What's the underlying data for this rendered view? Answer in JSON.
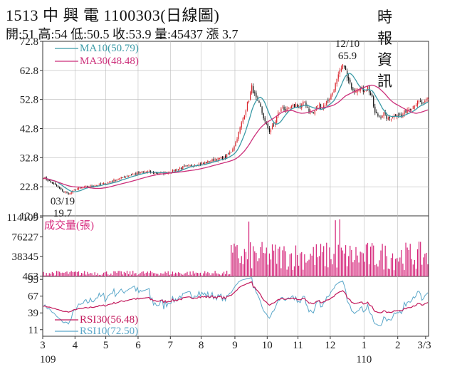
{
  "header": {
    "code": "1513",
    "name": "中 興 電",
    "date": "1100303(日線圖)",
    "source": "時報資訊",
    "stats": "開:51 高:54 低:50.5 收:53.9 量:45437 漲 3.7"
  },
  "colors": {
    "ma10": "#3a9aa6",
    "ma30": "#cc2f7a",
    "up": "#d8232a",
    "down": "#111111",
    "volume": "#d6287c",
    "rsi10": "#5aa7c9",
    "rsi30": "#c2185b"
  },
  "chart_data": [
    {
      "type": "candlestick",
      "panel": "price",
      "y_ticks": [
        "72.8",
        "62.8",
        "52.8",
        "42.8",
        "32.8",
        "22.8",
        "12.8"
      ],
      "ylim": [
        12.8,
        72.8
      ],
      "legend": [
        {
          "key": "ma10",
          "label": "MA10(50.79)"
        },
        {
          "key": "ma30",
          "label": "MA30(48.48)"
        }
      ],
      "annotations": [
        {
          "date": "03/19",
          "value": "19.7"
        },
        {
          "date": "12/10",
          "value": "65.9"
        }
      ],
      "anchors": [
        [
          0,
          26
        ],
        [
          5,
          24.5
        ],
        [
          10,
          22.5
        ],
        [
          14,
          21
        ],
        [
          18,
          20.5
        ],
        [
          22,
          22
        ],
        [
          27,
          22.5
        ],
        [
          32,
          23
        ],
        [
          37,
          23.5
        ],
        [
          43,
          24
        ],
        [
          48,
          25
        ],
        [
          54,
          26
        ],
        [
          60,
          27
        ],
        [
          66,
          27.5
        ],
        [
          70,
          28
        ],
        [
          76,
          27.5
        ],
        [
          82,
          27.5
        ],
        [
          86,
          28
        ],
        [
          90,
          28.5
        ],
        [
          95,
          29.5
        ],
        [
          100,
          30
        ],
        [
          104,
          30.5
        ],
        [
          110,
          31
        ],
        [
          116,
          32
        ],
        [
          120,
          32.5
        ],
        [
          124,
          33
        ],
        [
          128,
          35
        ],
        [
          131,
          38
        ],
        [
          134,
          43
        ],
        [
          137,
          48
        ],
        [
          140,
          53
        ],
        [
          142,
          57
        ],
        [
          145,
          53
        ],
        [
          148,
          50
        ],
        [
          151,
          45
        ],
        [
          154,
          42
        ],
        [
          157,
          44
        ],
        [
          160,
          48
        ],
        [
          163,
          50
        ],
        [
          166,
          49
        ],
        [
          169,
          50
        ],
        [
          172,
          51
        ],
        [
          175,
          50
        ],
        [
          178,
          52
        ],
        [
          181,
          49
        ],
        [
          184,
          48
        ],
        [
          187,
          51
        ],
        [
          190,
          50
        ],
        [
          193,
          52
        ],
        [
          196,
          54
        ],
        [
          199,
          58
        ],
        [
          202,
          62
        ],
        [
          205,
          65
        ],
        [
          207,
          60
        ],
        [
          209,
          58
        ],
        [
          212,
          56
        ],
        [
          215,
          57
        ],
        [
          218,
          56
        ],
        [
          221,
          57
        ],
        [
          224,
          53
        ],
        [
          226,
          48
        ],
        [
          229,
          47
        ],
        [
          232,
          48
        ],
        [
          235,
          46
        ],
        [
          238,
          47
        ],
        [
          241,
          48
        ],
        [
          244,
          47
        ],
        [
          247,
          49
        ],
        [
          250,
          50
        ],
        [
          253,
          51
        ],
        [
          256,
          52
        ],
        [
          259,
          51
        ],
        [
          262,
          53
        ]
      ],
      "x_ticks": [
        "3",
        "4",
        "5",
        "6",
        "7",
        "8",
        "9",
        "10",
        "11",
        "12",
        "1",
        "2",
        "3/3"
      ],
      "year_labels": [
        "109",
        "110"
      ]
    },
    {
      "type": "bar",
      "panel": "volume",
      "title": "成交量(張)",
      "y_ticks": [
        "114109",
        "76227",
        "38345",
        "463"
      ],
      "ylim": [
        0,
        114109
      ]
    },
    {
      "type": "line",
      "panel": "rsi",
      "y_ticks": [
        "95",
        "67",
        "39",
        "11"
      ],
      "ylim": [
        0,
        100
      ],
      "legend": [
        {
          "key": "rsi30",
          "label": "RSI30(56.48)"
        },
        {
          "key": "rsi10",
          "label": "RSI10(72.50)"
        }
      ]
    }
  ]
}
